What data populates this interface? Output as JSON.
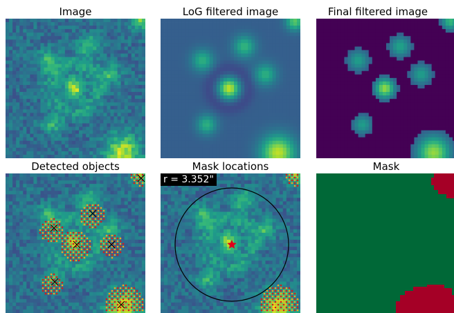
{
  "panels": [
    {
      "title": "Image"
    },
    {
      "title": "LoG filtered image"
    },
    {
      "title": "Final filtered image"
    },
    {
      "title": "Detected objects"
    },
    {
      "title": "Mask locations"
    },
    {
      "title": "Mask"
    }
  ],
  "mask_radius_label": "r = 3.352\"",
  "colors": {
    "viridis_dark": "#440154",
    "viridis_mid": "#21918c",
    "viridis_yellow": "#fde725",
    "mask_green": "#006837",
    "mask_red": "#a50026",
    "hatch_red": "#d7191c",
    "hatch_orange": "#f7a21c",
    "star": "#e0001a"
  },
  "icons": {
    "detection_marker": "x-mark-icon",
    "center_marker": "star-icon"
  }
}
